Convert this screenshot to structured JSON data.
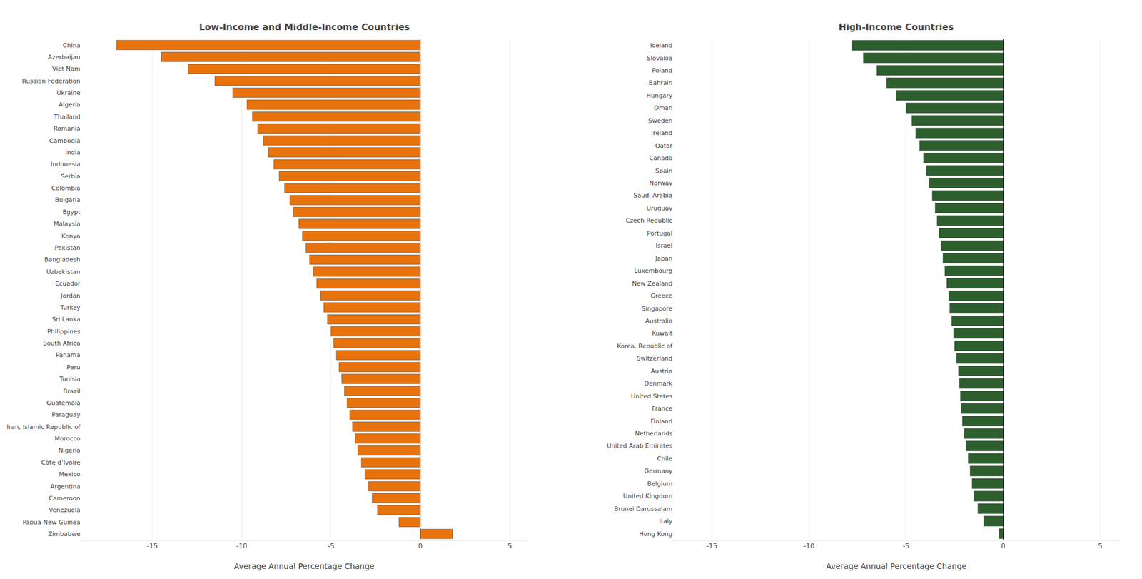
{
  "chart_data": [
    {
      "type": "bar",
      "orientation": "horizontal",
      "title": "Low-Income and Middle-Income Countries",
      "xlabel": "Average Annual Percentage Change",
      "categories": [
        "China",
        "Azerbaijan",
        "Viet Nam",
        "Russian Federation",
        "Ukraine",
        "Algeria",
        "Thailand",
        "Romania",
        "Cambodia",
        "India",
        "Indonesia",
        "Serbia",
        "Colombia",
        "Bulgaria",
        "Egypt",
        "Malaysia",
        "Kenya",
        "Pakistan",
        "Bangladesh",
        "Uzbekistan",
        "Ecuador",
        "Jordan",
        "Turkey",
        "Sri Lanka",
        "Philippines",
        "South Africa",
        "Panama",
        "Peru",
        "Tunisia",
        "Brazil",
        "Guatemala",
        "Paraguay",
        "Iran, Islamic Republic of",
        "Morocco",
        "Nigeria",
        "Côte d’Ivoire",
        "Mexico",
        "Argentina",
        "Cameroon",
        "Venezuela",
        "Papua New Guinea",
        "Zimbabwe"
      ],
      "values": [
        -17.0,
        -14.5,
        -13.0,
        -11.5,
        -10.5,
        -9.7,
        -9.4,
        -9.1,
        -8.8,
        -8.5,
        -8.2,
        -7.9,
        -7.6,
        -7.3,
        -7.1,
        -6.8,
        -6.6,
        -6.4,
        -6.2,
        -6.0,
        -5.8,
        -5.6,
        -5.4,
        -5.2,
        -5.0,
        -4.85,
        -4.7,
        -4.55,
        -4.4,
        -4.25,
        -4.1,
        -3.95,
        -3.8,
        -3.65,
        -3.5,
        -3.3,
        -3.1,
        -2.9,
        -2.7,
        -2.4,
        -1.2,
        1.8
      ],
      "color": "#E8720C",
      "xlim": [
        -19,
        6
      ],
      "xticks": [
        -15,
        -10,
        -5,
        0,
        5
      ],
      "grid": true
    },
    {
      "type": "bar",
      "orientation": "horizontal",
      "title": "High-Income Countries",
      "xlabel": "Average Annual Percentage Change",
      "categories": [
        "Iceland",
        "Slovakia",
        "Poland",
        "Bahrain",
        "Hungary",
        "Oman",
        "Sweden",
        "Ireland",
        "Qatar",
        "Canada",
        "Spain",
        "Norway",
        "Saudi Arabia",
        "Uruguay",
        "Czech Republic",
        "Portugal",
        "Israel",
        "Japan",
        "Luxembourg",
        "New Zealand",
        "Greece",
        "Singapore",
        "Australia",
        "Kuwait",
        "Korea, Republic of",
        "Switzerland",
        "Austria",
        "Denmark",
        "United States",
        "France",
        "Finland",
        "Netherlands",
        "United Arab Emirates",
        "Chile",
        "Germany",
        "Belgium",
        "United Kingdom",
        "Brunei Darussalam",
        "Italy",
        "Hong Kong"
      ],
      "values": [
        -7.8,
        -7.2,
        -6.5,
        -6.0,
        -5.5,
        -5.0,
        -4.7,
        -4.5,
        -4.3,
        -4.1,
        -3.95,
        -3.8,
        -3.65,
        -3.5,
        -3.4,
        -3.3,
        -3.2,
        -3.1,
        -3.0,
        -2.9,
        -2.8,
        -2.75,
        -2.65,
        -2.55,
        -2.5,
        -2.4,
        -2.3,
        -2.25,
        -2.2,
        -2.15,
        -2.1,
        -2.0,
        -1.9,
        -1.8,
        -1.7,
        -1.6,
        -1.5,
        -1.3,
        -1.0,
        -0.2
      ],
      "color": "#2D5F2E",
      "xlim": [
        -17,
        6
      ],
      "xticks": [
        -15,
        -10,
        -5,
        0,
        5
      ],
      "grid": true
    }
  ]
}
